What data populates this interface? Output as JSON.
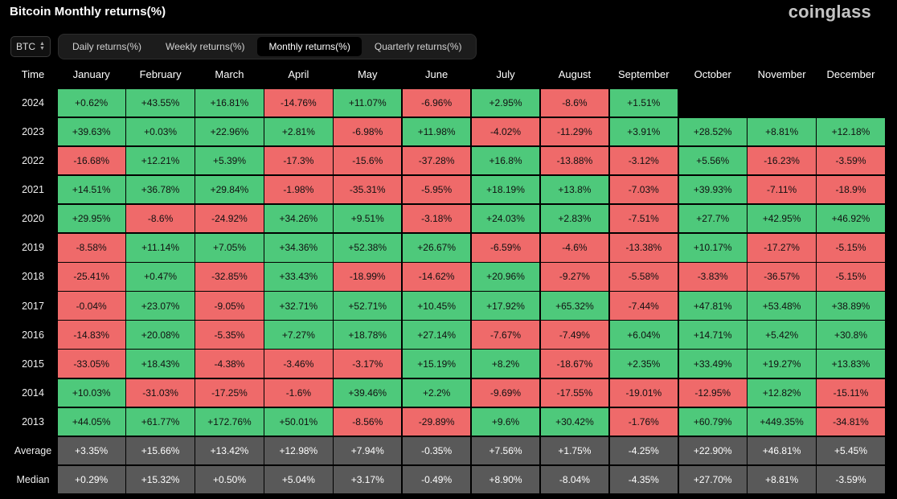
{
  "header": {
    "title": "Bitcoin Monthly returns(%)",
    "brand": "coinglass"
  },
  "asset_select": {
    "value": "BTC"
  },
  "tabs": [
    {
      "label": "Daily returns(%)",
      "active": false
    },
    {
      "label": "Weekly returns(%)",
      "active": false
    },
    {
      "label": "Monthly returns(%)",
      "active": true
    },
    {
      "label": "Quarterly returns(%)",
      "active": false
    }
  ],
  "colors": {
    "positive": "#4ec97b",
    "negative": "#ef6a6a",
    "summary": "#595959"
  },
  "table": {
    "columns": [
      "Time",
      "January",
      "February",
      "March",
      "April",
      "May",
      "June",
      "July",
      "August",
      "September",
      "October",
      "November",
      "December"
    ],
    "rows": [
      {
        "label": "2024",
        "values": [
          "+0.62%",
          "+43.55%",
          "+16.81%",
          "-14.76%",
          "+11.07%",
          "-6.96%",
          "+2.95%",
          "-8.6%",
          "+1.51%",
          "",
          "",
          ""
        ]
      },
      {
        "label": "2023",
        "values": [
          "+39.63%",
          "+0.03%",
          "+22.96%",
          "+2.81%",
          "-6.98%",
          "+11.98%",
          "-4.02%",
          "-11.29%",
          "+3.91%",
          "+28.52%",
          "+8.81%",
          "+12.18%"
        ]
      },
      {
        "label": "2022",
        "values": [
          "-16.68%",
          "+12.21%",
          "+5.39%",
          "-17.3%",
          "-15.6%",
          "-37.28%",
          "+16.8%",
          "-13.88%",
          "-3.12%",
          "+5.56%",
          "-16.23%",
          "-3.59%"
        ]
      },
      {
        "label": "2021",
        "values": [
          "+14.51%",
          "+36.78%",
          "+29.84%",
          "-1.98%",
          "-35.31%",
          "-5.95%",
          "+18.19%",
          "+13.8%",
          "-7.03%",
          "+39.93%",
          "-7.11%",
          "-18.9%"
        ]
      },
      {
        "label": "2020",
        "values": [
          "+29.95%",
          "-8.6%",
          "-24.92%",
          "+34.26%",
          "+9.51%",
          "-3.18%",
          "+24.03%",
          "+2.83%",
          "-7.51%",
          "+27.7%",
          "+42.95%",
          "+46.92%"
        ]
      },
      {
        "label": "2019",
        "values": [
          "-8.58%",
          "+11.14%",
          "+7.05%",
          "+34.36%",
          "+52.38%",
          "+26.67%",
          "-6.59%",
          "-4.6%",
          "-13.38%",
          "+10.17%",
          "-17.27%",
          "-5.15%"
        ]
      },
      {
        "label": "2018",
        "values": [
          "-25.41%",
          "+0.47%",
          "-32.85%",
          "+33.43%",
          "-18.99%",
          "-14.62%",
          "+20.96%",
          "-9.27%",
          "-5.58%",
          "-3.83%",
          "-36.57%",
          "-5.15%"
        ]
      },
      {
        "label": "2017",
        "values": [
          "-0.04%",
          "+23.07%",
          "-9.05%",
          "+32.71%",
          "+52.71%",
          "+10.45%",
          "+17.92%",
          "+65.32%",
          "-7.44%",
          "+47.81%",
          "+53.48%",
          "+38.89%"
        ]
      },
      {
        "label": "2016",
        "values": [
          "-14.83%",
          "+20.08%",
          "-5.35%",
          "+7.27%",
          "+18.78%",
          "+27.14%",
          "-7.67%",
          "-7.49%",
          "+6.04%",
          "+14.71%",
          "+5.42%",
          "+30.8%"
        ]
      },
      {
        "label": "2015",
        "values": [
          "-33.05%",
          "+18.43%",
          "-4.38%",
          "-3.46%",
          "-3.17%",
          "+15.19%",
          "+8.2%",
          "-18.67%",
          "+2.35%",
          "+33.49%",
          "+19.27%",
          "+13.83%"
        ]
      },
      {
        "label": "2014",
        "values": [
          "+10.03%",
          "-31.03%",
          "-17.25%",
          "-1.6%",
          "+39.46%",
          "+2.2%",
          "-9.69%",
          "-17.55%",
          "-19.01%",
          "-12.95%",
          "+12.82%",
          "-15.11%"
        ]
      },
      {
        "label": "2013",
        "values": [
          "+44.05%",
          "+61.77%",
          "+172.76%",
          "+50.01%",
          "-8.56%",
          "-29.89%",
          "+9.6%",
          "+30.42%",
          "-1.76%",
          "+60.79%",
          "+449.35%",
          "-34.81%"
        ]
      },
      {
        "label": "Average",
        "summary": true,
        "values": [
          "+3.35%",
          "+15.66%",
          "+13.42%",
          "+12.98%",
          "+7.94%",
          "-0.35%",
          "+7.56%",
          "+1.75%",
          "-4.25%",
          "+22.90%",
          "+46.81%",
          "+5.45%"
        ]
      },
      {
        "label": "Median",
        "summary": true,
        "values": [
          "+0.29%",
          "+15.32%",
          "+0.50%",
          "+5.04%",
          "+3.17%",
          "-0.49%",
          "+8.90%",
          "-8.04%",
          "-4.35%",
          "+27.70%",
          "+8.81%",
          "-3.59%"
        ]
      }
    ]
  }
}
